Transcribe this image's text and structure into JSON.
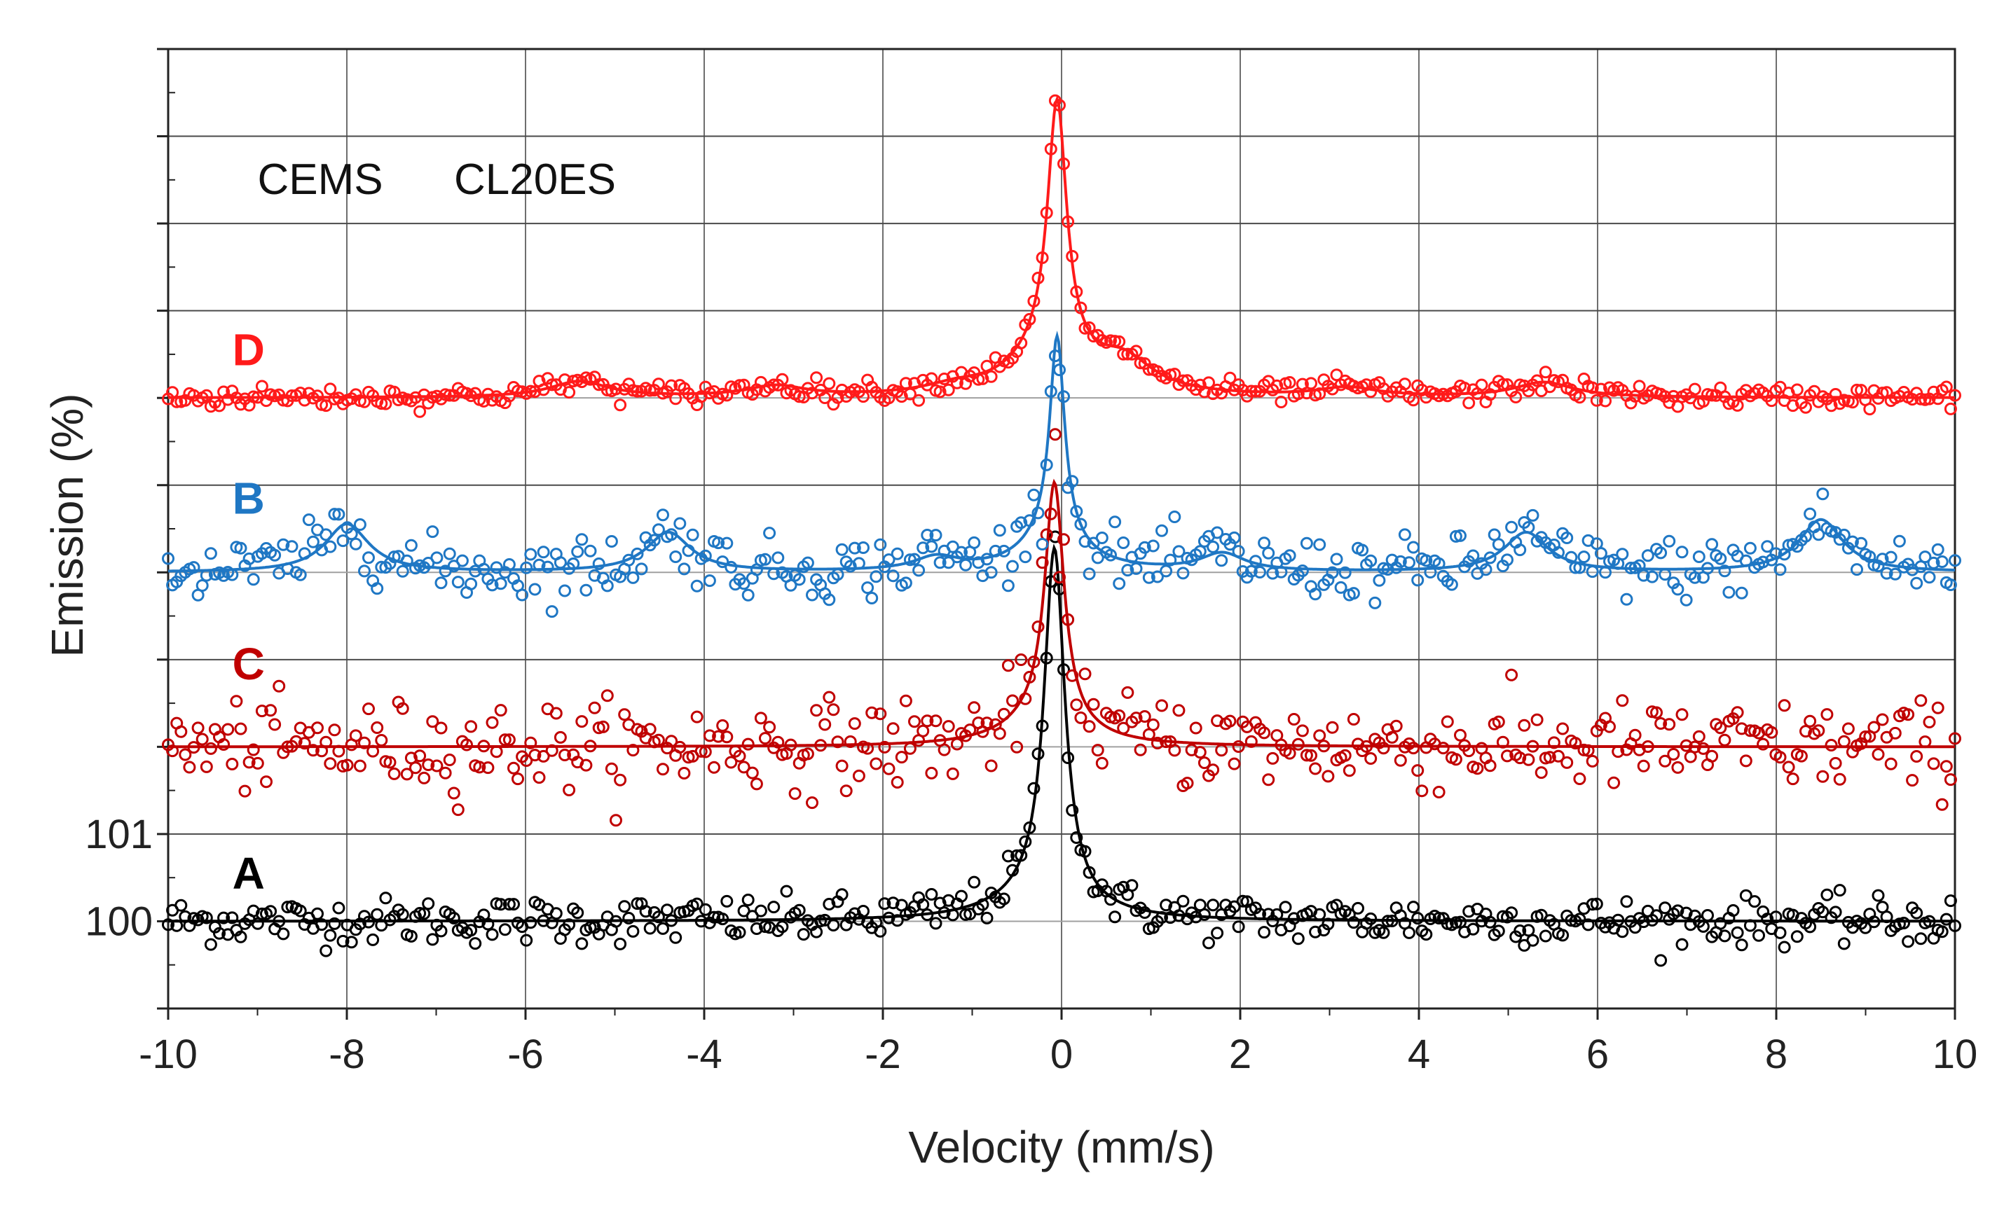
{
  "chart_data": {
    "type": "scatter",
    "title": "",
    "xlabel": "Velocity (mm/s)",
    "ylabel": "Emission (%)",
    "xlim": [
      -10,
      10
    ],
    "ylim": [
      99,
      110
    ],
    "x_ticks": [
      -10,
      -8,
      -6,
      -4,
      -2,
      0,
      2,
      4,
      6,
      8,
      10
    ],
    "x_tick_labels": [
      "-10",
      "-8",
      "-6",
      "-4",
      "-2",
      "0",
      "2",
      "4",
      "6",
      "8",
      "10"
    ],
    "y_tick_labels": [
      {
        "value": 101,
        "label": "101"
      },
      {
        "value": 100,
        "label": "100"
      }
    ],
    "grid": true,
    "annotations": [
      {
        "text": "CEMS",
        "x": -9.0,
        "y": 108.5
      },
      {
        "text": "CL20ES",
        "x": -6.8,
        "y": 108.5
      }
    ],
    "series": [
      {
        "name": "A",
        "label": "A",
        "color": "#000000",
        "baseline": 100.0,
        "label_pos": {
          "x": -9.1,
          "y": 100.55
        },
        "noise": 0.13,
        "fit_peaks": [
          {
            "center": -0.08,
            "amplitude": 4.05,
            "width": 0.14
          },
          {
            "center": -0.25,
            "amplitude": 0.25,
            "width": 0.6
          }
        ]
      },
      {
        "name": "C",
        "label": "C",
        "color": "#c00000",
        "baseline": 102.0,
        "label_pos": {
          "x": -9.1,
          "y": 102.95
        },
        "noise": 0.25,
        "fit_peaks": [
          {
            "center": -0.08,
            "amplitude": 2.75,
            "width": 0.13
          },
          {
            "center": -0.2,
            "amplitude": 0.3,
            "width": 0.5
          }
        ]
      },
      {
        "name": "B",
        "label": "B",
        "color": "#1f77c4",
        "baseline": 104.0,
        "label_pos": {
          "x": -9.1,
          "y": 104.85
        },
        "noise": 0.17,
        "fit_peaks": [
          {
            "center": -0.05,
            "amplitude": 2.3,
            "width": 0.1
          },
          {
            "center": -0.1,
            "amplitude": 0.4,
            "width": 0.4
          },
          {
            "center": -8.0,
            "amplitude": 0.55,
            "width": 0.3
          },
          {
            "center": -4.4,
            "amplitude": 0.45,
            "width": 0.3
          },
          {
            "center": 5.2,
            "amplitude": 0.45,
            "width": 0.3
          },
          {
            "center": 8.5,
            "amplitude": 0.6,
            "width": 0.3
          },
          {
            "center": -1.4,
            "amplitude": 0.15,
            "width": 0.3
          },
          {
            "center": 1.8,
            "amplitude": 0.2,
            "width": 0.3
          }
        ]
      },
      {
        "name": "D",
        "label": "D",
        "color": "#ff1a1a",
        "baseline": 106.0,
        "label_pos": {
          "x": -9.1,
          "y": 106.55
        },
        "noise": 0.06,
        "fit_peaks": [
          {
            "center": -0.05,
            "amplitude": 2.9,
            "width": 0.13
          },
          {
            "center": -0.15,
            "amplitude": 0.45,
            "width": 0.5
          },
          {
            "center": 0.7,
            "amplitude": 0.35,
            "width": 0.4
          },
          {
            "center": -5.4,
            "amplitude": 0.18,
            "width": 0.4
          },
          {
            "center": -3.2,
            "amplitude": 0.12,
            "width": 0.4
          },
          {
            "center": 3.2,
            "amplitude": 0.1,
            "width": 0.4
          },
          {
            "center": 5.4,
            "amplitude": 0.17,
            "width": 0.4
          },
          {
            "center": -1.2,
            "amplitude": 0.08,
            "width": 0.4
          }
        ]
      }
    ]
  }
}
